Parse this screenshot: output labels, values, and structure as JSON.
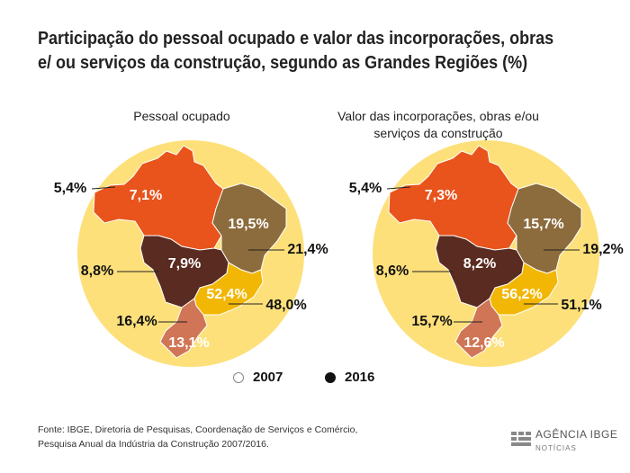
{
  "title": "Participação do pessoal ocupado e valor das incorporações, obras e/ ou serviços da construção, segundo as Grandes Regiões (%)",
  "chart_data": [
    {
      "type": "map",
      "title": "Pessoal ocupado",
      "legend": [
        {
          "name": "2007",
          "color": "#ffffff"
        },
        {
          "name": "2016",
          "color": "#111111"
        }
      ],
      "regions": [
        {
          "region": "Norte",
          "value_2007": 5.4,
          "value_2016": 7.1,
          "color": "#e8541c"
        },
        {
          "region": "Nordeste",
          "value_2007": 21.4,
          "value_2016": 19.5,
          "color": "#8c6b3c"
        },
        {
          "region": "Centro-Oeste",
          "value_2007": 8.8,
          "value_2016": 7.9,
          "color": "#5a2b20"
        },
        {
          "region": "Sudeste",
          "value_2007": 48.0,
          "value_2016": 52.4,
          "color": "#f2b705"
        },
        {
          "region": "Sul",
          "value_2007": 16.4,
          "value_2016": 13.1,
          "color": "#d07555"
        }
      ],
      "labels_2007": [
        "5,4%",
        "21,4%",
        "8,8%",
        "48,0%",
        "16,4%"
      ],
      "labels_2016": [
        "7,1%",
        "19,5%",
        "7,9%",
        "52,4%",
        "13,1%"
      ]
    },
    {
      "type": "map",
      "title": "Valor das incorporações, obras e/ou serviços da construção",
      "legend": [
        {
          "name": "2007",
          "color": "#ffffff"
        },
        {
          "name": "2016",
          "color": "#111111"
        }
      ],
      "regions": [
        {
          "region": "Norte",
          "value_2007": 5.4,
          "value_2016": 7.3,
          "color": "#e8541c"
        },
        {
          "region": "Nordeste",
          "value_2007": 19.2,
          "value_2016": 15.7,
          "color": "#8c6b3c"
        },
        {
          "region": "Centro-Oeste",
          "value_2007": 8.6,
          "value_2016": 8.2,
          "color": "#5a2b20"
        },
        {
          "region": "Sudeste",
          "value_2007": 51.1,
          "value_2016": 56.2,
          "color": "#f2b705"
        },
        {
          "region": "Sul",
          "value_2007": 15.7,
          "value_2016": 12.6,
          "color": "#d07555"
        }
      ],
      "labels_2007": [
        "5,4%",
        "19,2%",
        "8,6%",
        "51,1%",
        "15,7%"
      ],
      "labels_2016": [
        "7,3%",
        "15,7%",
        "8,2%",
        "56,2%",
        "12,6%"
      ]
    }
  ],
  "legend": {
    "y2007": "2007",
    "y2016": "2016"
  },
  "source": {
    "line1": "Fonte: IBGE, Diretoria de Pesquisas, Coordenação de Serviços e Comércio,",
    "line2": "Pesquisa Anual da Indústria da Construção 2007/2016."
  },
  "logo": {
    "text": "AGÊNCIA IBGE",
    "sub": "NOTÍCIAS"
  },
  "colors": {
    "circle": "#fde07a",
    "norte": "#e8541c",
    "nordeste": "#8c6b3c",
    "centro_oeste": "#5a2b20",
    "sudeste": "#f2b705",
    "sul": "#d07555"
  }
}
